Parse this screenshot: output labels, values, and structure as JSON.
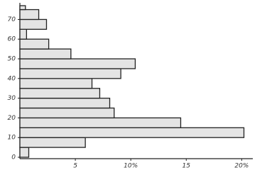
{
  "chart_data": {
    "type": "histogram",
    "orientation": "horizontal",
    "bins": [
      0,
      5,
      10,
      15,
      20,
      25,
      30,
      35,
      40,
      45,
      50,
      55,
      60,
      65,
      70,
      75,
      77
    ],
    "values": [
      0.8,
      5.9,
      20.2,
      14.5,
      8.5,
      8.1,
      7.2,
      6.5,
      9.1,
      10.4,
      4.6,
      2.6,
      0.6,
      2.4,
      1.7,
      0.5
    ],
    "color": "#e4e4e4",
    "xlim": [
      0,
      21
    ],
    "xticks": [
      5,
      {
        "value": 10,
        "label": "10%"
      },
      15,
      {
        "value": 20,
        "label": "20%"
      }
    ],
    "ylim": [
      0,
      77
    ],
    "yticks": [
      0,
      10,
      20,
      30,
      40,
      50,
      60,
      70
    ]
  }
}
